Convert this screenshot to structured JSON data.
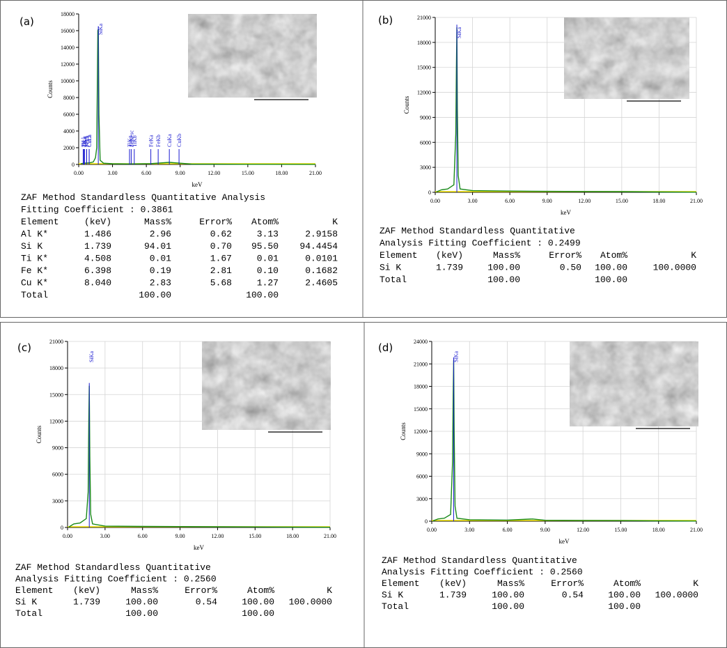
{
  "chart_data": [
    {
      "type": "line",
      "panel": "(a)",
      "ylabel": "Counts",
      "xlabel": "keV",
      "color": "#1a8a1a",
      "grid": false,
      "x": [
        0.2,
        0.5,
        1.0,
        1.3,
        1.49,
        1.6,
        1.7,
        1.74,
        1.8,
        1.9,
        2.2,
        3,
        4.5,
        6.4,
        8.04,
        10,
        15,
        21
      ],
      "values": [
        100,
        150,
        200,
        300,
        800,
        2000,
        16000,
        16200,
        6000,
        500,
        150,
        80,
        60,
        100,
        250,
        40,
        20,
        10
      ],
      "xlim": [
        0,
        21
      ],
      "ylim": [
        0,
        18000
      ],
      "xticks": [
        {
          "value": 0,
          "label": "0.00"
        },
        {
          "value": 3,
          "label": "3.00"
        },
        {
          "value": 6,
          "label": "6.00"
        },
        {
          "value": 9,
          "label": "9.00"
        },
        {
          "value": 12,
          "label": "12.00"
        },
        {
          "value": 15,
          "label": "15.00"
        },
        {
          "value": 18,
          "label": "18.00"
        },
        {
          "value": 21,
          "label": "21.00"
        }
      ],
      "yticks": [
        0,
        2000,
        4000,
        6000,
        8000,
        10000,
        12000,
        14000,
        16000,
        18000
      ],
      "peaks": [
        {
          "label": "TiLl",
          "x": 0.4
        },
        {
          "label": "TiLa",
          "x": 0.45
        },
        {
          "label": "FeLl",
          "x": 0.7
        },
        {
          "label": "FeLa",
          "x": 0.71
        },
        {
          "label": "OKa",
          "x": 0.52
        },
        {
          "label": "CuLl",
          "x": 0.93
        },
        {
          "label": "CuLa",
          "x": 0.93
        },
        {
          "label": "SiKa",
          "x": 1.739
        },
        {
          "label": "TiKa",
          "x": 4.508
        },
        {
          "label": "FeKesc",
          "x": 4.66
        },
        {
          "label": "TiKb",
          "x": 4.93
        },
        {
          "label": "FeKa",
          "x": 6.398
        },
        {
          "label": "FeKb",
          "x": 7.05
        },
        {
          "label": "CuKa",
          "x": 8.04
        },
        {
          "label": "CuKb",
          "x": 8.9
        }
      ],
      "table": {
        "title": [
          "ZAF Method Standardless Quantitative Analysis",
          "Fitting Coefficient : 0.3861"
        ],
        "header": [
          "Element",
          "(keV)",
          "Mass%",
          "Error%",
          "Atom%",
          "K"
        ],
        "rows": [
          [
            "Al K*",
            "1.486",
            "2.96",
            "0.62",
            "3.13",
            "2.9158"
          ],
          [
            "Si K",
            "1.739",
            "94.01",
            "0.70",
            "95.50",
            "94.4454"
          ],
          [
            "Ti K*",
            "4.508",
            "0.01",
            "1.67",
            "0.01",
            "0.0101"
          ],
          [
            "Fe K*",
            "6.398",
            "0.19",
            "2.81",
            "0.10",
            "0.1682"
          ],
          [
            "Cu K*",
            "8.040",
            "2.83",
            "5.68",
            "1.27",
            "2.4605"
          ],
          [
            "Total",
            null,
            "100.00",
            null,
            "100.00",
            null
          ]
        ]
      }
    },
    {
      "type": "line",
      "panel": "(b)",
      "ylabel": "Counts",
      "xlabel": "keV",
      "color": "#1a8a1a",
      "grid": true,
      "x": [
        0.1,
        0.5,
        1.0,
        1.5,
        1.65,
        1.7,
        1.74,
        1.78,
        1.85,
        2.0,
        3,
        6,
        9,
        12,
        15,
        18,
        21
      ],
      "values": [
        50,
        300,
        400,
        900,
        7000,
        15000,
        19800,
        10000,
        2000,
        400,
        200,
        150,
        120,
        100,
        80,
        40,
        20
      ],
      "xlim": [
        0,
        21
      ],
      "ylim": [
        0,
        21000
      ],
      "xticks": [
        {
          "value": 0,
          "label": "0.00"
        },
        {
          "value": 3,
          "label": "3.00"
        },
        {
          "value": 6,
          "label": "6.00"
        },
        {
          "value": 9,
          "label": "9.00"
        },
        {
          "value": 12,
          "label": "12.00"
        },
        {
          "value": 15,
          "label": "15.00"
        },
        {
          "value": 18,
          "label": "18.00"
        },
        {
          "value": 21,
          "label": "21.00"
        }
      ],
      "yticks": [
        0,
        3000,
        6000,
        9000,
        12000,
        15000,
        18000,
        21000
      ],
      "peaks": [
        {
          "label": "SiKa",
          "x": 1.739
        }
      ],
      "table": {
        "title": [
          "ZAF Method Standardless Quantitative",
          "Analysis Fitting Coefficient : 0.2499"
        ],
        "header": [
          "Element",
          "(keV)",
          "Mass%",
          "Error%",
          "Atom%",
          "K"
        ],
        "rows": [
          [
            "Si K",
            "1.739",
            "100.00",
            "0.50",
            "100.00",
            "100.0000"
          ],
          [
            "Total",
            null,
            "100.00",
            null,
            "100.00",
            null
          ]
        ]
      }
    },
    {
      "type": "line",
      "panel": "(c)",
      "ylabel": "Counts",
      "xlabel": "keV",
      "color": "#1a8a1a",
      "grid": true,
      "x": [
        0.1,
        0.5,
        1.0,
        1.5,
        1.65,
        1.7,
        1.74,
        1.78,
        1.85,
        2.0,
        3,
        6,
        9,
        12,
        15,
        18,
        21
      ],
      "values": [
        50,
        400,
        500,
        1000,
        4000,
        12000,
        16000,
        8000,
        1500,
        400,
        150,
        120,
        100,
        80,
        60,
        40,
        20
      ],
      "xlim": [
        0,
        21
      ],
      "ylim": [
        0,
        21000
      ],
      "xticks": [
        {
          "value": 0,
          "label": "0.00"
        },
        {
          "value": 3,
          "label": "3.00"
        },
        {
          "value": 6,
          "label": "6.00"
        },
        {
          "value": 9,
          "label": "9.00"
        },
        {
          "value": 12,
          "label": "12.00"
        },
        {
          "value": 15,
          "label": "15.00"
        },
        {
          "value": 18,
          "label": "18.00"
        },
        {
          "value": 21,
          "label": "21.00"
        }
      ],
      "yticks": [
        0,
        3000,
        6000,
        9000,
        12000,
        15000,
        18000,
        21000
      ],
      "peaks": [
        {
          "label": "SiKa",
          "x": 1.739
        }
      ],
      "table": {
        "title": [
          "ZAF Method Standardless Quantitative",
          "Analysis Fitting Coefficient : 0.2560"
        ],
        "header": [
          "Element",
          "(keV)",
          "Mass%",
          "Error%",
          "Atom%",
          "K"
        ],
        "rows": [
          [
            "Si K",
            "1.739",
            "100.00",
            "0.54",
            "100.00",
            "100.0000"
          ],
          [
            "Total",
            null,
            "100.00",
            null,
            "100.00",
            null
          ]
        ]
      }
    },
    {
      "type": "line",
      "panel": "(d)",
      "ylabel": "Counts",
      "xlabel": "keV",
      "color": "#1a8a1a",
      "grid": true,
      "x": [
        0.1,
        0.5,
        1.0,
        1.5,
        1.65,
        1.7,
        1.74,
        1.78,
        1.85,
        2.0,
        3,
        6,
        8,
        9,
        12,
        15,
        18,
        21
      ],
      "values": [
        50,
        300,
        400,
        900,
        8000,
        17000,
        21500,
        12000,
        2000,
        400,
        200,
        150,
        300,
        120,
        100,
        80,
        40,
        20
      ],
      "xlim": [
        0,
        21
      ],
      "ylim": [
        0,
        24000
      ],
      "xticks": [
        {
          "value": 0,
          "label": "0.00"
        },
        {
          "value": 3,
          "label": "3.00"
        },
        {
          "value": 6,
          "label": "6.00"
        },
        {
          "value": 9,
          "label": "9.00"
        },
        {
          "value": 12,
          "label": "12.00"
        },
        {
          "value": 15,
          "label": "15.00"
        },
        {
          "value": 18,
          "label": "18.00"
        },
        {
          "value": 21,
          "label": "21.00"
        }
      ],
      "yticks": [
        0,
        3000,
        6000,
        9000,
        12000,
        15000,
        18000,
        21000,
        24000
      ],
      "peaks": [
        {
          "label": "SiKa",
          "x": 1.739
        }
      ],
      "table": {
        "title": [
          "ZAF Method Standardless Quantitative",
          "Analysis Fitting Coefficient : 0.2560"
        ],
        "header": [
          "Element",
          "(keV)",
          "Mass%",
          "Error%",
          "Atom%",
          "K"
        ],
        "rows": [
          [
            "Si K",
            "1.739",
            "100.00",
            "0.54",
            "100.00",
            "100.0000"
          ],
          [
            "Total",
            null,
            "100.00",
            null,
            "100.00",
            null
          ]
        ]
      }
    }
  ]
}
